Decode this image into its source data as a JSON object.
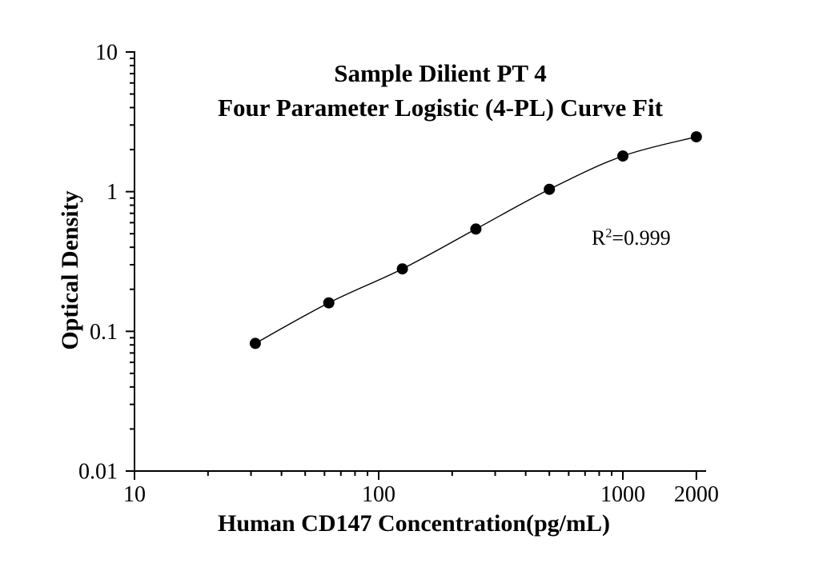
{
  "figure": {
    "background": "#ffffff",
    "title_line1": "Sample Dilient PT 4",
    "title_line2": "Four Parameter Logistic (4-PL) Curve Fit",
    "xlabel": "Human CD147 Concentration(pg/mL)",
    "ylabel": "Optical Density",
    "annotation": {
      "base": "R",
      "sup": "2",
      "rest": "=0.999"
    }
  },
  "chart_data": {
    "type": "scatter",
    "subtype": "ELISA standard curve, four parameter logistic fit",
    "title": "Sample Dilient PT 4",
    "subtitle": "Four Parameter Logistic (4-PL) Curve Fit",
    "xlabel": "Human CD147 Concentration(pg/mL)",
    "ylabel": "Optical Density",
    "x_scale": "log",
    "y_scale": "log",
    "xlim": [
      10,
      2200
    ],
    "ylim": [
      0.01,
      10
    ],
    "grid": false,
    "legend": false,
    "r_squared": "0.999",
    "line_color": "#000000",
    "marker_color": "#000000",
    "axis_color": "#000000",
    "points": [
      {
        "x": 31.25,
        "y": 0.082
      },
      {
        "x": 62.5,
        "y": 0.16
      },
      {
        "x": 125,
        "y": 0.28
      },
      {
        "x": 250,
        "y": 0.54
      },
      {
        "x": 500,
        "y": 1.04
      },
      {
        "x": 1000,
        "y": 1.8
      },
      {
        "x": 2000,
        "y": 2.47
      }
    ],
    "x_ticks": [
      {
        "v": 10,
        "label": "10"
      },
      {
        "v": 100,
        "label": "100"
      },
      {
        "v": 1000,
        "label": "1000"
      },
      {
        "v": 2000,
        "label": "2000"
      }
    ],
    "y_ticks": [
      {
        "v": 10,
        "label": "10"
      },
      {
        "v": 1,
        "label": "1"
      },
      {
        "v": 0.1,
        "label": "0.1"
      },
      {
        "v": 0.01,
        "label": "0.01"
      }
    ]
  }
}
